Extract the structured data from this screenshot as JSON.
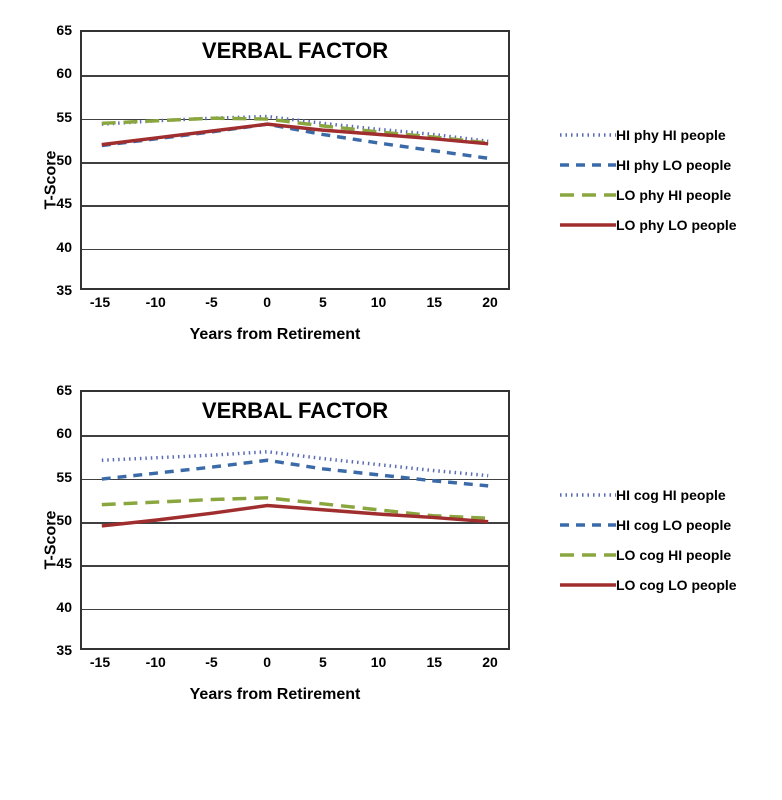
{
  "global": {
    "bg_color": "#ffffff",
    "axis_color": "#333333",
    "grid_color": "#404040",
    "tick_font_size": 14,
    "label_font_size": 16,
    "title_font_size": 22,
    "line_width": 3.5
  },
  "charts": [
    {
      "title": "VERBAL FACTOR",
      "ylabel": "T-Score",
      "xlabel": "Years from Retirement",
      "ylim": [
        35,
        65
      ],
      "ytick_step": 5,
      "xlim": [
        -15,
        20
      ],
      "xtick_step": 5,
      "x": [
        -15,
        -10,
        -5,
        0,
        5,
        10,
        15,
        20
      ],
      "series": [
        {
          "name": "HI phy HI people",
          "color": "#5b6bb5",
          "dash": "1.5 4",
          "y": [
            54.2,
            54.6,
            54.9,
            55.1,
            54.3,
            53.6,
            53.0,
            52.2
          ]
        },
        {
          "name": "HI phy LO people",
          "color": "#3a6aa8",
          "dash": "9 7",
          "y": [
            51.7,
            52.5,
            53.3,
            54.2,
            53.0,
            52.0,
            51.1,
            50.2
          ]
        },
        {
          "name": "LO phy HI people",
          "color": "#8aa63e",
          "dash": "14 8",
          "y": [
            54.3,
            54.6,
            54.9,
            54.8,
            54.0,
            53.3,
            52.7,
            52.0
          ]
        },
        {
          "name": "LO phy LO people",
          "color": "#a02e2e",
          "dash": "",
          "y": [
            51.8,
            52.6,
            53.4,
            54.2,
            53.5,
            53.0,
            52.5,
            51.9
          ]
        }
      ]
    },
    {
      "title": "VERBAL FACTOR",
      "ylabel": "T-Score",
      "xlabel": "Years from Retirement",
      "ylim": [
        35,
        65
      ],
      "ytick_step": 5,
      "xlim": [
        -15,
        20
      ],
      "xtick_step": 5,
      "x": [
        -15,
        -10,
        -5,
        0,
        5,
        10,
        15,
        20
      ],
      "series": [
        {
          "name": "HI cog HI people",
          "color": "#5b6bb5",
          "dash": "1.5 4",
          "y": [
            57.0,
            57.3,
            57.6,
            58.0,
            57.2,
            56.5,
            55.8,
            55.2
          ]
        },
        {
          "name": "HI cog LO people",
          "color": "#3a6aa8",
          "dash": "9 7",
          "y": [
            54.8,
            55.5,
            56.2,
            57.0,
            56.0,
            55.3,
            54.6,
            54.0
          ]
        },
        {
          "name": "LO cog HI people",
          "color": "#8aa63e",
          "dash": "14 8",
          "y": [
            51.8,
            52.1,
            52.4,
            52.6,
            51.9,
            51.2,
            50.5,
            50.2
          ]
        },
        {
          "name": "LO cog LO people",
          "color": "#a02e2e",
          "dash": "",
          "y": [
            49.3,
            50.0,
            50.8,
            51.7,
            51.2,
            50.7,
            50.3,
            49.8
          ]
        }
      ]
    }
  ]
}
